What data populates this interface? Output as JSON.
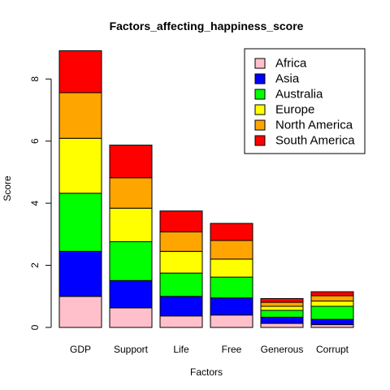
{
  "chart_data": {
    "type": "bar",
    "stacked": true,
    "title": "Factors_affecting_happiness_score",
    "xlabel": "Factors",
    "ylabel": "Score",
    "categories": [
      "GDP",
      "Support",
      "Life",
      "Free",
      "Generous",
      "Corrupt"
    ],
    "y_ticks": [
      "0",
      "2",
      "4",
      "6",
      "8"
    ],
    "ylim": [
      0,
      9.0
    ],
    "legend_position": "top-right",
    "series": [
      {
        "name": "Africa",
        "color": "#FFC0CB",
        "values": [
          1.0,
          0.63,
          0.37,
          0.4,
          0.13,
          0.09
        ]
      },
      {
        "name": "Asia",
        "color": "#0000FF",
        "values": [
          1.45,
          0.88,
          0.63,
          0.55,
          0.2,
          0.17
        ]
      },
      {
        "name": "Australia",
        "color": "#00FF00",
        "values": [
          1.87,
          1.25,
          0.75,
          0.67,
          0.22,
          0.42
        ]
      },
      {
        "name": "Europe",
        "color": "#FFFF00",
        "values": [
          1.77,
          1.08,
          0.7,
          0.58,
          0.13,
          0.17
        ]
      },
      {
        "name": "North America",
        "color": "#FFA500",
        "values": [
          1.47,
          0.98,
          0.63,
          0.6,
          0.13,
          0.17
        ]
      },
      {
        "name": "South America",
        "color": "#FF0000",
        "values": [
          1.35,
          1.05,
          0.67,
          0.55,
          0.12,
          0.13
        ]
      }
    ]
  }
}
